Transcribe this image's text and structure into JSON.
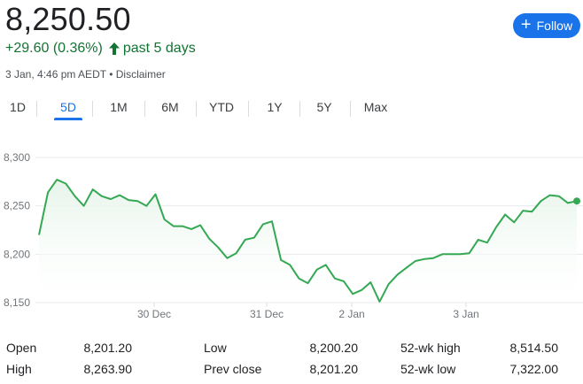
{
  "header": {
    "price": "8,250.50",
    "change": "+29.60 (0.36%)",
    "period": "past 5 days",
    "timestamp": "3 Jan, 4:46 pm AEDT",
    "separator": "•",
    "disclaimer": "Disclaimer",
    "positive_color": "#137333"
  },
  "follow_button": {
    "label": "Follow",
    "icon": "plus-icon",
    "color": "#1a73e8"
  },
  "tabs": [
    {
      "label": "1D",
      "active": false
    },
    {
      "label": "5D",
      "active": true
    },
    {
      "label": "1M",
      "active": false
    },
    {
      "label": "6M",
      "active": false
    },
    {
      "label": "YTD",
      "active": false
    },
    {
      "label": "1Y",
      "active": false
    },
    {
      "label": "5Y",
      "active": false
    },
    {
      "label": "Max",
      "active": false
    }
  ],
  "chart_data": {
    "type": "area",
    "title": "",
    "xlabel": "",
    "ylabel": "",
    "ylim": [
      8150,
      8300
    ],
    "y_ticks": [
      "8,300",
      "8,250",
      "8,200",
      "8,150"
    ],
    "x_ticks": [
      "30 Dec",
      "31 Dec",
      "2 Jan",
      "3 Jan"
    ],
    "grid": true,
    "line_color": "#34a853",
    "fill_color": "#e6f4ea",
    "series": [
      {
        "values": [
          8220,
          8264,
          8277,
          8273,
          8260,
          8250,
          8267,
          8260,
          8257,
          8261,
          8256,
          8255,
          8250,
          8262,
          8236,
          8229,
          8229,
          8226,
          8230,
          8216,
          8207,
          8196,
          8201,
          8215,
          8217,
          8231,
          8234,
          8194,
          8189,
          8175,
          8170,
          8184,
          8189,
          8175,
          8172,
          8159,
          8163,
          8171,
          8151,
          8169,
          8179,
          8186,
          8193,
          8195,
          8196,
          8200,
          8200,
          8200,
          8201,
          8215,
          8212,
          8228,
          8241,
          8233,
          8245,
          8244,
          8255,
          8261,
          8260,
          8253,
          8255
        ]
      }
    ]
  },
  "stats": [
    {
      "label": "Open",
      "value": "8,201.20"
    },
    {
      "label": "High",
      "value": "8,263.90"
    },
    {
      "label": "Low",
      "value": "8,200.20"
    },
    {
      "label": "Prev close",
      "value": "8,201.20"
    },
    {
      "label": "52-wk high",
      "value": "8,514.50"
    },
    {
      "label": "52-wk low",
      "value": "7,322.00"
    }
  ]
}
